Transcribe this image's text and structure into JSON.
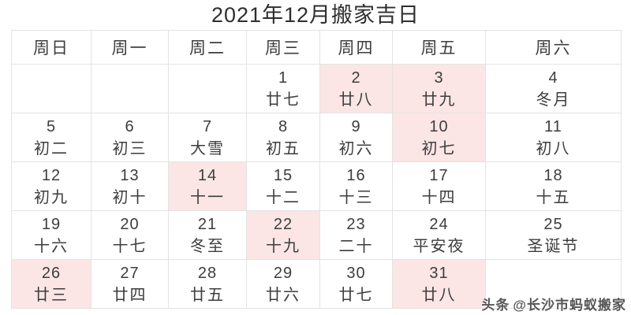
{
  "title": "2021年12月搬家吉日",
  "weekday_headers": [
    "周日",
    "周一",
    "周二",
    "周三",
    "周四",
    "周五",
    "周六"
  ],
  "colors": {
    "highlight": "#fbe5e5",
    "border": "#e3e3e3",
    "text": "#3d3d3d"
  },
  "watermark": {
    "brand": "头条",
    "handle": "@长沙市蚂蚁搬家"
  },
  "weeks": [
    [
      {
        "day": "",
        "lunar": "",
        "highlight": false
      },
      {
        "day": "",
        "lunar": "",
        "highlight": false
      },
      {
        "day": "",
        "lunar": "",
        "highlight": false
      },
      {
        "day": "1",
        "lunar": "廿七",
        "highlight": false
      },
      {
        "day": "2",
        "lunar": "廿八",
        "highlight": true
      },
      {
        "day": "3",
        "lunar": "廿九",
        "highlight": true
      },
      {
        "day": "4",
        "lunar": "冬月",
        "highlight": false
      }
    ],
    [
      {
        "day": "5",
        "lunar": "初二",
        "highlight": false
      },
      {
        "day": "6",
        "lunar": "初三",
        "highlight": false
      },
      {
        "day": "7",
        "lunar": "大雪",
        "highlight": false
      },
      {
        "day": "8",
        "lunar": "初五",
        "highlight": false
      },
      {
        "day": "9",
        "lunar": "初六",
        "highlight": false
      },
      {
        "day": "10",
        "lunar": "初七",
        "highlight": true
      },
      {
        "day": "11",
        "lunar": "初八",
        "highlight": false
      }
    ],
    [
      {
        "day": "12",
        "lunar": "初九",
        "highlight": false
      },
      {
        "day": "13",
        "lunar": "初十",
        "highlight": false
      },
      {
        "day": "14",
        "lunar": "十一",
        "highlight": true
      },
      {
        "day": "15",
        "lunar": "十二",
        "highlight": false
      },
      {
        "day": "16",
        "lunar": "十三",
        "highlight": false
      },
      {
        "day": "17",
        "lunar": "十四",
        "highlight": false
      },
      {
        "day": "18",
        "lunar": "十五",
        "highlight": false
      }
    ],
    [
      {
        "day": "19",
        "lunar": "十六",
        "highlight": false
      },
      {
        "day": "20",
        "lunar": "十七",
        "highlight": false
      },
      {
        "day": "21",
        "lunar": "冬至",
        "highlight": false
      },
      {
        "day": "22",
        "lunar": "十九",
        "highlight": true
      },
      {
        "day": "23",
        "lunar": "二十",
        "highlight": false
      },
      {
        "day": "24",
        "lunar": "平安夜",
        "highlight": false
      },
      {
        "day": "25",
        "lunar": "圣诞节",
        "highlight": false
      }
    ],
    [
      {
        "day": "26",
        "lunar": "廿三",
        "highlight": true
      },
      {
        "day": "27",
        "lunar": "廿四",
        "highlight": false
      },
      {
        "day": "28",
        "lunar": "廿五",
        "highlight": false
      },
      {
        "day": "29",
        "lunar": "廿六",
        "highlight": false
      },
      {
        "day": "30",
        "lunar": "廿七",
        "highlight": false
      },
      {
        "day": "31",
        "lunar": "廿八",
        "highlight": true
      },
      {
        "day": "",
        "lunar": "",
        "highlight": false
      }
    ]
  ]
}
